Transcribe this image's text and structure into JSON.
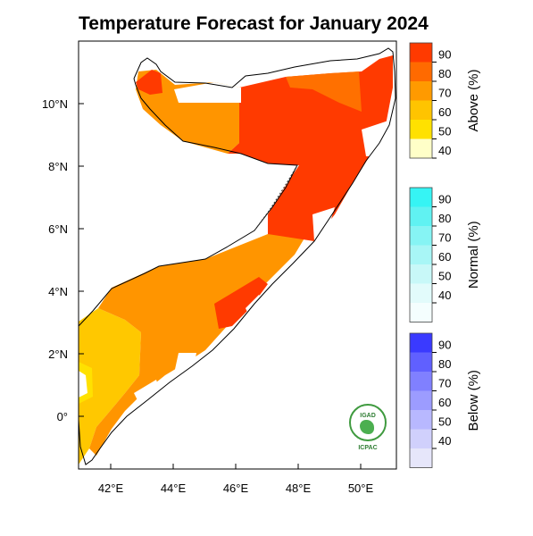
{
  "title": "Temperature Forecast for January 2024",
  "axes": {
    "x_ticks": [
      "42°E",
      "44°E",
      "46°E",
      "48°E",
      "50°E"
    ],
    "y_ticks": [
      "10°N",
      "8°N",
      "6°N",
      "4°N",
      "2°N",
      "0°"
    ]
  },
  "colorbars": [
    {
      "label": "Above (%)",
      "levels": [
        "90",
        "80",
        "70",
        "60",
        "50",
        "40"
      ],
      "colors": [
        "#ff3a00",
        "#ff6a00",
        "#ff9a00",
        "#ffc400",
        "#ffe100",
        "#ffffc8"
      ]
    },
    {
      "label": "Normal (%)",
      "levels": [
        "90",
        "80",
        "70",
        "60",
        "50",
        "40"
      ],
      "colors": [
        "#36f4f4",
        "#60f2f2",
        "#86f4f4",
        "#a8f6f6",
        "#c8f8f8",
        "#e2fbfb",
        "#f4fefe"
      ]
    },
    {
      "label": "Below (%)",
      "levels": [
        "90",
        "80",
        "70",
        "60",
        "50",
        "40"
      ],
      "colors": [
        "#3a3aff",
        "#6060ff",
        "#8080ff",
        "#9c9cff",
        "#b8b8ff",
        "#d0d0fc",
        "#e6e6fa"
      ]
    }
  ],
  "logo": {
    "top_text": "IGAD",
    "bottom_text": "ICPAC"
  },
  "map_colors": {
    "above_90": "#ff3a00",
    "above_80": "#ff7000",
    "above_70": "#ff9500",
    "above_50": "#ffc800",
    "above_40": "#ffe100",
    "coast": "#000000"
  }
}
